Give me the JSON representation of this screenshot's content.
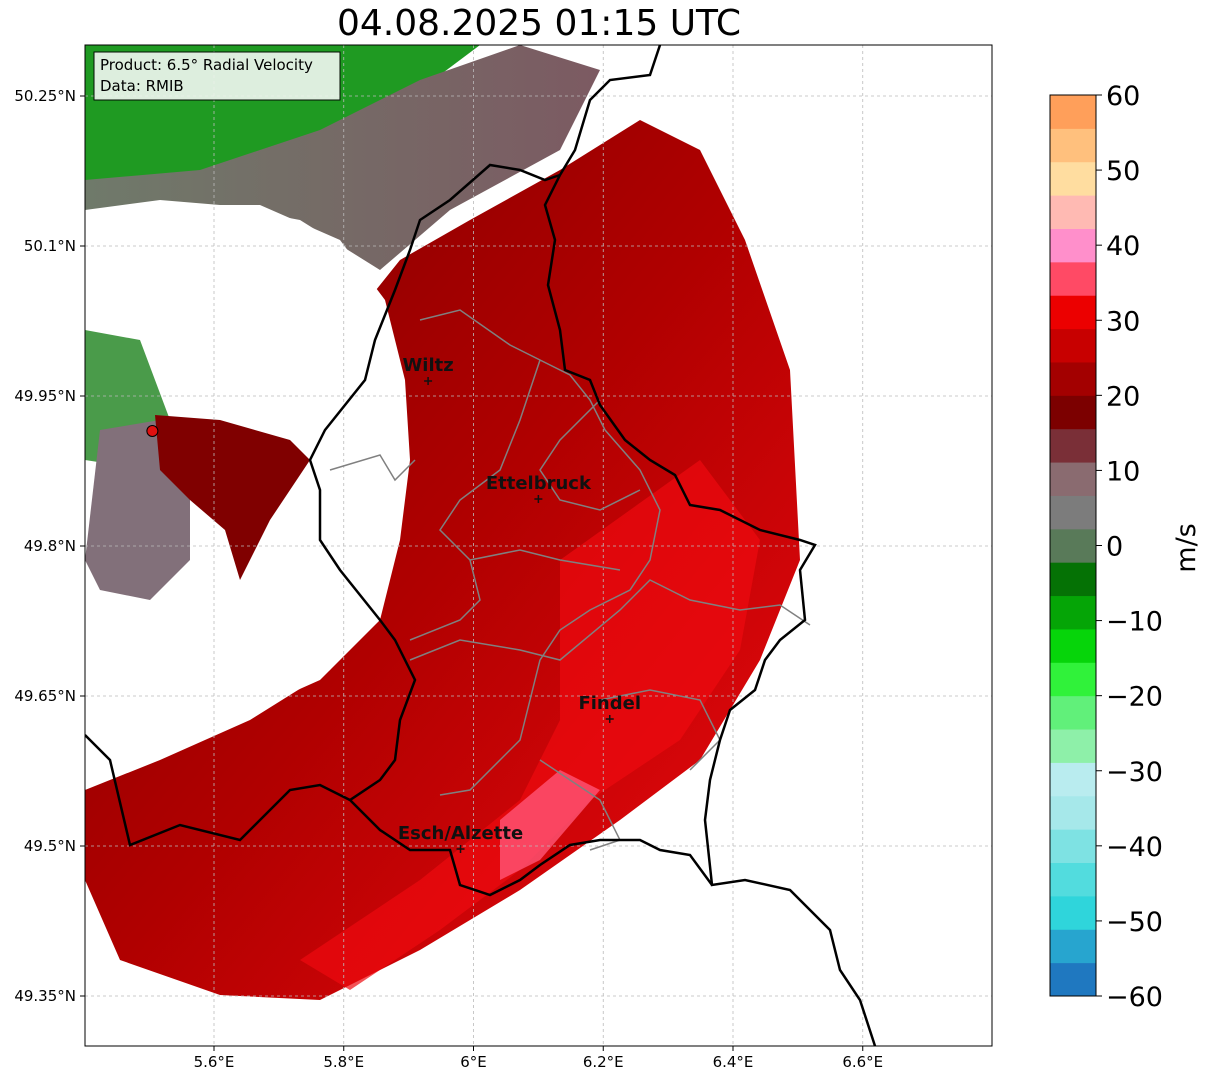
{
  "title": "04.08.2025 01:15 UTC",
  "info_box": {
    "product": "Product: 6.5° Radial Velocity",
    "data": "Data: RMIB"
  },
  "colorbar": {
    "unit": "m/s",
    "min": -60,
    "max": 60,
    "ticks": [
      "−60",
      "−50",
      "−40",
      "−30",
      "−20",
      "−10",
      "0",
      "10",
      "20",
      "30",
      "40",
      "50",
      "60"
    ],
    "colors": [
      "#1f78c0",
      "#27a5cf",
      "#2fd5db",
      "#52dcde",
      "#7ee2e3",
      "#a6e8ea",
      "#b9ecef",
      "#8ef0a9",
      "#61f07a",
      "#30f23a",
      "#06d50a",
      "#05a506",
      "#057205",
      "#597a59",
      "#7c7c7c",
      "#8a6b70",
      "#7a2f37",
      "#7c0000",
      "#a30000",
      "#c80000",
      "#ec0000",
      "#ff4a65",
      "#ff8fcb",
      "#ffbab3",
      "#ffdda0",
      "#ffc07d",
      "#ff9f5a"
    ]
  },
  "x_ticks": [
    "5.6°E",
    "5.8°E",
    "6°E",
    "6.2°E",
    "6.4°E",
    "6.6°E"
  ],
  "y_ticks": [
    "50.25°N",
    "50.1°N",
    "49.95°N",
    "49.8°N",
    "49.65°N",
    "49.5°N",
    "49.35°N"
  ],
  "cities": [
    {
      "name": "Wiltz",
      "lon": 5.93,
      "lat": 49.965
    },
    {
      "name": "Ettelbruck",
      "lon": 6.1,
      "lat": 49.847
    },
    {
      "name": "Findel",
      "lon": 6.21,
      "lat": 49.627
    },
    {
      "name": "Esch/Alzette",
      "lon": 5.98,
      "lat": 49.497
    }
  ],
  "radar_site": {
    "lon": 5.505,
    "lat": 49.915
  },
  "colors": {
    "border": "#000000",
    "cantons": "#808080",
    "grid": "#bbbbbb",
    "radar_dot": "#e01010"
  }
}
